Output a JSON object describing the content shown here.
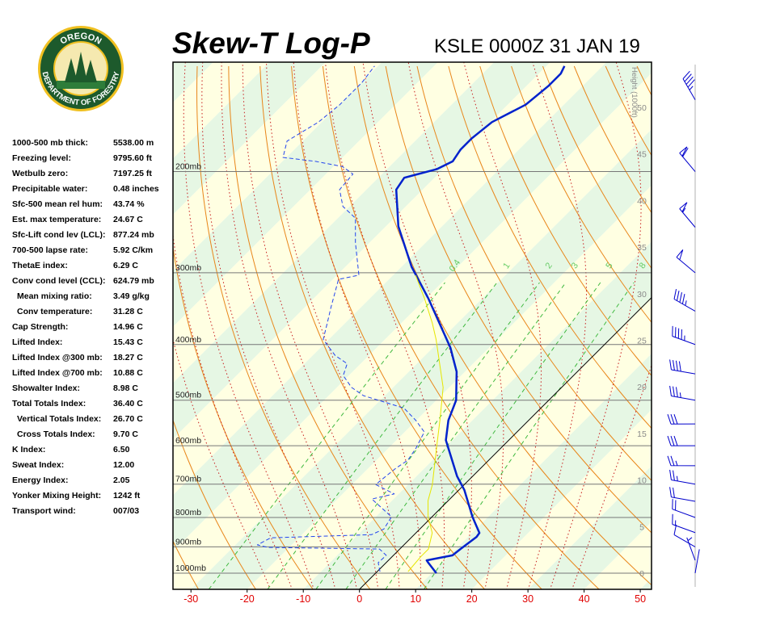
{
  "header": {
    "title": "Skew-T Log-P",
    "station": "KSLE 0000Z 31 JAN 19"
  },
  "logo": {
    "top": "OREGON",
    "bottom": "DEPARTMENT OF FORESTRY"
  },
  "indices": [
    {
      "label": "1000-500 mb thick:",
      "value": "5538.00 m"
    },
    {
      "label": "Freezing level:",
      "value": "9795.60 ft"
    },
    {
      "label": "Wetbulb zero:",
      "value": "7197.25 ft"
    },
    {
      "label": "Precipitable water:",
      "value": "0.48 inches"
    },
    {
      "label": "Sfc-500 mean rel hum:",
      "value": "43.74 %"
    },
    {
      "label": "Est. max temperature:",
      "value": "24.67 C"
    },
    {
      "label": "Sfc-Lift cond lev (LCL):",
      "value": "877.24 mb"
    },
    {
      "label": "700-500 lapse rate:",
      "value": "5.92 C/km"
    },
    {
      "label": "ThetaE index:",
      "value": "6.29 C"
    },
    {
      "label": "Conv cond level (CCL):",
      "value": "624.79 mb"
    },
    {
      "label": "Mean mixing ratio:",
      "value": "3.49 g/kg",
      "indent": true
    },
    {
      "label": "Conv temperature:",
      "value": "31.28 C",
      "indent": true
    },
    {
      "label": "Cap Strength:",
      "value": "14.96 C"
    },
    {
      "label": "Lifted Index:",
      "value": "15.43 C"
    },
    {
      "label": "Lifted Index @300 mb:",
      "value": "18.27 C"
    },
    {
      "label": "Lifted Index @700 mb:",
      "value": "10.88 C"
    },
    {
      "label": "Showalter Index:",
      "value": "8.98 C"
    },
    {
      "label": "Total Totals Index:",
      "value": "36.40 C"
    },
    {
      "label": "Vertical Totals Index:",
      "value": "26.70 C",
      "indent": true
    },
    {
      "label": "Cross Totals Index:",
      "value": "9.70 C",
      "indent": true
    },
    {
      "label": "K Index:",
      "value": "6.50"
    },
    {
      "label": "Sweat Index:",
      "value": "12.00"
    },
    {
      "label": "Energy Index:",
      "value": "2.05"
    },
    {
      "label": "Yonker Mixing Height:",
      "value": "1242 ft"
    },
    {
      "label": "Transport wind:",
      "value": "007/03"
    }
  ],
  "chart_data": {
    "type": "skewt",
    "xlim": [
      -33.2,
      52
    ],
    "xticks": [
      -30,
      -20,
      -10,
      0,
      10,
      20,
      30,
      40,
      50
    ],
    "ylim": [
      1067,
      129
    ],
    "yscale": "log",
    "yticks": [
      {
        "value": 1000,
        "label": "1000mb"
      },
      {
        "value": 900,
        "label": "900mb"
      },
      {
        "value": 800,
        "label": "800mb"
      },
      {
        "value": 700,
        "label": "700mb"
      },
      {
        "value": 600,
        "label": "600mb"
      },
      {
        "value": 500,
        "label": "500mb"
      },
      {
        "value": 400,
        "label": "400mb"
      },
      {
        "value": 300,
        "label": "300mb"
      },
      {
        "value": 200,
        "label": "200mb"
      }
    ],
    "y2label": "Height (1000ft)",
    "y2lim": [
      -1.73,
      54.85
    ],
    "y2ticks": [
      0,
      5,
      10,
      15,
      20,
      25,
      30,
      35,
      40,
      45,
      50
    ],
    "series": [
      {
        "color": "#0022cc",
        "style": "solid",
        "pressure": [
          1000,
          959,
          950,
          931,
          908,
          865,
          851,
          798,
          717,
          678,
          587,
          542,
          500,
          446,
          405,
          333,
          293,
          249,
          215,
          205,
          198,
          192,
          183,
          175,
          164,
          153,
          142,
          135,
          131
        ],
        "values": [
          10.8,
          7.5,
          6.8,
          10.5,
          10.8,
          11.5,
          11.3,
          7.2,
          1.0,
          -2.8,
          -11.2,
          -14.3,
          -16.5,
          -21.5,
          -26.9,
          -39.5,
          -48.2,
          -57.8,
          -64.7,
          -65.4,
          -61.1,
          -59.7,
          -60.4,
          -60.4,
          -59.7,
          -56.8,
          -56.1,
          -56.1,
          -56.8
        ]
      },
      {
        "color": "#2244ee",
        "style": "dashed",
        "pressure": [
          994,
          959,
          931,
          908,
          902,
          893,
          868,
          857,
          838,
          798,
          743,
          728,
          701,
          657,
          636,
          606,
          568,
          542,
          516,
          491,
          475,
          453,
          432,
          418,
          392,
          367,
          344,
          308,
          303,
          266,
          241,
          230,
          215,
          202,
          196,
          192,
          189,
          177,
          164,
          153,
          140,
          131
        ],
        "values": [
          0.5,
          -1.4,
          -1.3,
          -3.6,
          -23.7,
          -26.1,
          -25.0,
          -7.6,
          -6.4,
          -7.2,
          -13.9,
          -10.8,
          -15.8,
          -15.1,
          -14.4,
          -15.1,
          -16.5,
          -20.1,
          -24.4,
          -33.8,
          -37.4,
          -41.0,
          -42.4,
          -46.0,
          -51.0,
          -53.2,
          -55.4,
          -59.0,
          -56.1,
          -62.5,
          -66.9,
          -71.2,
          -74.8,
          -75.2,
          -78.4,
          -84.1,
          -90.6,
          -92.8,
          -90.6,
          -89.9,
          -89.9,
          -90.6
        ]
      },
      {
        "color": "#e6e600",
        "style": "thin",
        "pressure": [
          994,
          937,
          908,
          851,
          798,
          748,
          701,
          616,
          542,
          475,
          392,
          367,
          333,
          303
        ],
        "values": [
          5.5,
          5.1,
          5.1,
          2.9,
          -0.7,
          -3.6,
          -5.7,
          -10.8,
          -15.8,
          -21.1,
          -30.9,
          -34.5,
          -40.2,
          -46.0
        ]
      }
    ],
    "mixing_ratios": [
      0.4,
      1,
      2,
      3,
      5,
      8
    ],
    "dry_adiabats": [
      240,
      250,
      260,
      270,
      280,
      290,
      300,
      310,
      320,
      330,
      340,
      350,
      360,
      370,
      380,
      390,
      400,
      410,
      420,
      430,
      440,
      450,
      460,
      470,
      480
    ],
    "moist_adiabats": [
      -20,
      -16,
      -12,
      -8,
      -4,
      0,
      4,
      8,
      12,
      16,
      20,
      24,
      28,
      32,
      36
    ],
    "winds": {
      "pressure": [
        1000,
        950,
        900,
        850,
        800,
        750,
        700,
        650,
        600,
        550,
        500,
        450,
        400,
        350,
        300,
        250,
        200,
        150
      ],
      "direction": [
        10,
        340,
        300,
        290,
        290,
        280,
        280,
        270,
        270,
        270,
        280,
        280,
        290,
        300,
        310,
        320,
        320,
        330
      ],
      "speed": [
        3,
        5,
        10,
        15,
        20,
        20,
        25,
        25,
        30,
        30,
        35,
        40,
        45,
        45,
        50,
        55,
        60,
        45
      ]
    }
  }
}
